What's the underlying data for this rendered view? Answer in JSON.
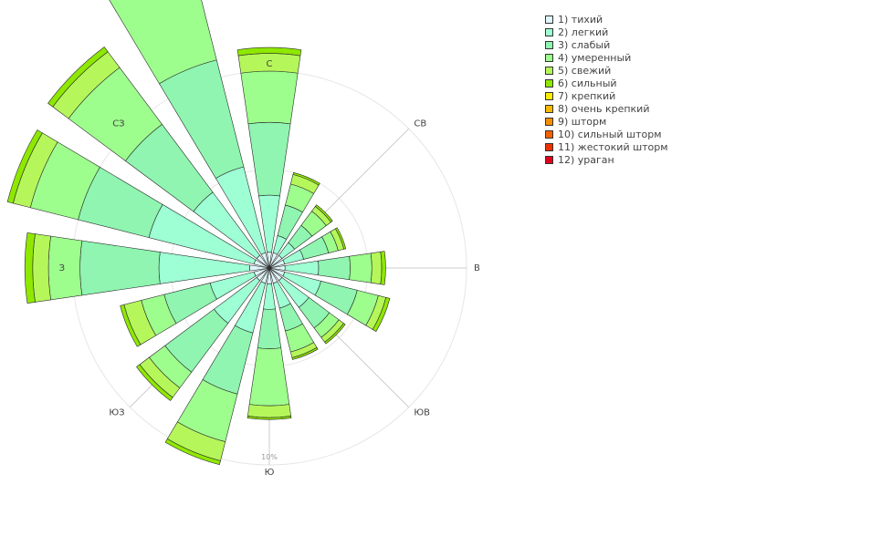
{
  "chart_data": {
    "type": "windrose",
    "title": "",
    "radial_tick_label": "10%",
    "radial_tick_value": 10,
    "directions": [
      "С",
      "СВ",
      "В",
      "ЮВ",
      "Ю",
      "ЮЗ",
      "З",
      "СЗ"
    ],
    "sectors_per_direction": 2,
    "sector_angles_deg": [
      0,
      22.5,
      45,
      67.5,
      90,
      112.5,
      135,
      157.5,
      180,
      202.5,
      225,
      247.5,
      270,
      292.5,
      315,
      337.5
    ],
    "series": [
      {
        "name": "1) тихий",
        "color": "#dff7fb",
        "values": [
          0.8,
          0.8,
          0.8,
          0.8,
          0.8,
          0.8,
          0.8,
          0.8,
          0.8,
          0.8,
          0.8,
          0.8,
          1.0,
          0.8,
          0.8,
          0.8
        ]
      },
      {
        "name": "2) легкий",
        "color": "#9effd4",
        "values": [
          2.9,
          0.9,
          0.8,
          1.0,
          1.7,
          1.9,
          1.7,
          1.3,
          1.3,
          2.6,
          2.7,
          2.3,
          4.6,
          5.5,
          4.0,
          4.5
        ]
      },
      {
        "name": "3) слабый",
        "color": "#8ff5b0",
        "values": [
          3.7,
          1.6,
          1.1,
          1.3,
          1.6,
          1.9,
          1.3,
          1.2,
          2.0,
          3.2,
          3.1,
          2.4,
          4.0,
          3.7,
          4.3,
          5.6
        ]
      },
      {
        "name": "4) умеренный",
        "color": "#9dfd8d",
        "values": [
          2.6,
          1.1,
          0.9,
          0.5,
          1.1,
          1.1,
          0.6,
          1.1,
          2.9,
          2.5,
          1.0,
          1.2,
          1.6,
          2.5,
          3.6,
          6.9
        ]
      },
      {
        "name": "5) свежий",
        "color": "#b5f75a",
        "values": [
          0.9,
          0.5,
          0.3,
          0.3,
          0.5,
          0.4,
          0.3,
          0.3,
          0.6,
          1.0,
          0.6,
          0.9,
          0.8,
          0.9,
          1.0,
          1.8
        ]
      },
      {
        "name": "6) сильный",
        "color": "#8ee800",
        "values": [
          0.3,
          0.1,
          0.1,
          0.1,
          0.2,
          0.2,
          0.1,
          0.1,
          0.1,
          0.2,
          0.2,
          0.2,
          0.4,
          0.3,
          0.3,
          0.5
        ]
      },
      {
        "name": "7) крепкий",
        "color": "#fbec00",
        "values": [
          0,
          0,
          0,
          0,
          0,
          0,
          0,
          0,
          0,
          0,
          0,
          0,
          0,
          0,
          0,
          0
        ]
      },
      {
        "name": "8) очень крепкий",
        "color": "#f9b900",
        "values": [
          0,
          0,
          0,
          0,
          0,
          0,
          0,
          0,
          0,
          0,
          0,
          0,
          0,
          0,
          0,
          0
        ]
      },
      {
        "name": "9) шторм",
        "color": "#f48d00",
        "values": [
          0,
          0,
          0,
          0,
          0,
          0,
          0,
          0,
          0,
          0,
          0,
          0,
          0,
          0,
          0,
          0
        ]
      },
      {
        "name": "10) сильный шторм",
        "color": "#f36100",
        "values": [
          0,
          0,
          0,
          0,
          0,
          0,
          0,
          0,
          0,
          0,
          0,
          0,
          0,
          0,
          0,
          0
        ]
      },
      {
        "name": "11) жестокий шторм",
        "color": "#ee3000",
        "values": [
          0,
          0,
          0,
          0,
          0,
          0,
          0,
          0,
          0,
          0,
          0,
          0,
          0,
          0,
          0,
          0
        ]
      },
      {
        "name": "12) ураган",
        "color": "#e0001b",
        "values": [
          0,
          0,
          0,
          0,
          0,
          0,
          0,
          0,
          0,
          0,
          0,
          0,
          0,
          0,
          0,
          0
        ]
      }
    ],
    "legend_position": "top-right",
    "grid": true
  }
}
